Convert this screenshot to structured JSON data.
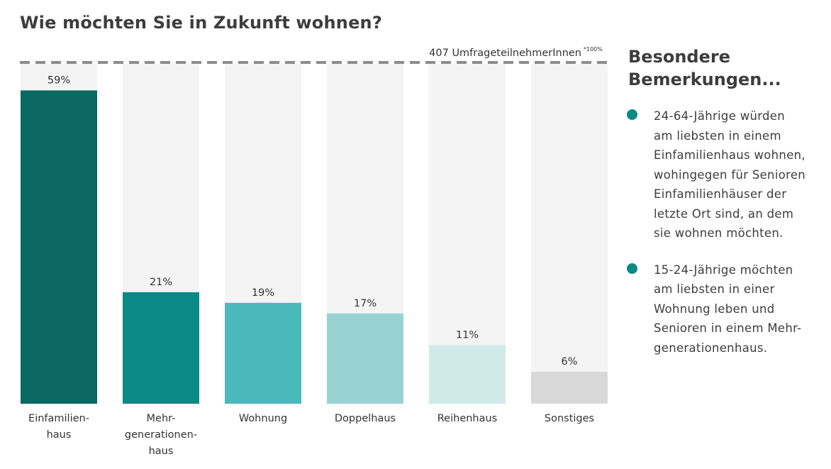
{
  "title": "Wie möchten Sie in Zukunft wohnen?",
  "sidebar": {
    "title": "Besondere\nBemerkungen...",
    "remarks": [
      "24-64-Jährige würden\nam liebsten in einem\nEinfamilienhaus wohnen,\nwohingegen für Senioren\nEinfamilienhäuser der\nletzte Ort sind, an dem\nsie wohnen möchten.",
      "15-24-Jährige möchten\nam liebsten in einer\nWohnung leben und\nSenioren in einem Mehr-\ngenerationenhaus."
    ]
  },
  "colors": {
    "bullet": "#0a8a84",
    "track": "#f4f4f4",
    "reference_line": "#8c8c8c"
  },
  "chart_data": {
    "type": "bar",
    "categories": [
      "Einfamilien-\nhaus",
      "Mehr-\ngenerationen-\nhaus",
      "Wohnung",
      "Doppelhaus",
      "Reihenhaus",
      "Sonstiges"
    ],
    "values": [
      59,
      21,
      19,
      17,
      11,
      6
    ],
    "value_labels": [
      "59%",
      "21%",
      "19%",
      "17%",
      "11%",
      "6%"
    ],
    "colors": [
      "#0b6863",
      "#0a8a84",
      "#4bb8bb",
      "#98d3d1",
      "#d0e9e9",
      "#d8d8d8"
    ],
    "ylim": [
      0,
      64
    ],
    "reference": {
      "label": "407 UmfrageteilnehmerInnen",
      "note": "*100%"
    },
    "grid": false,
    "legend": "none"
  }
}
